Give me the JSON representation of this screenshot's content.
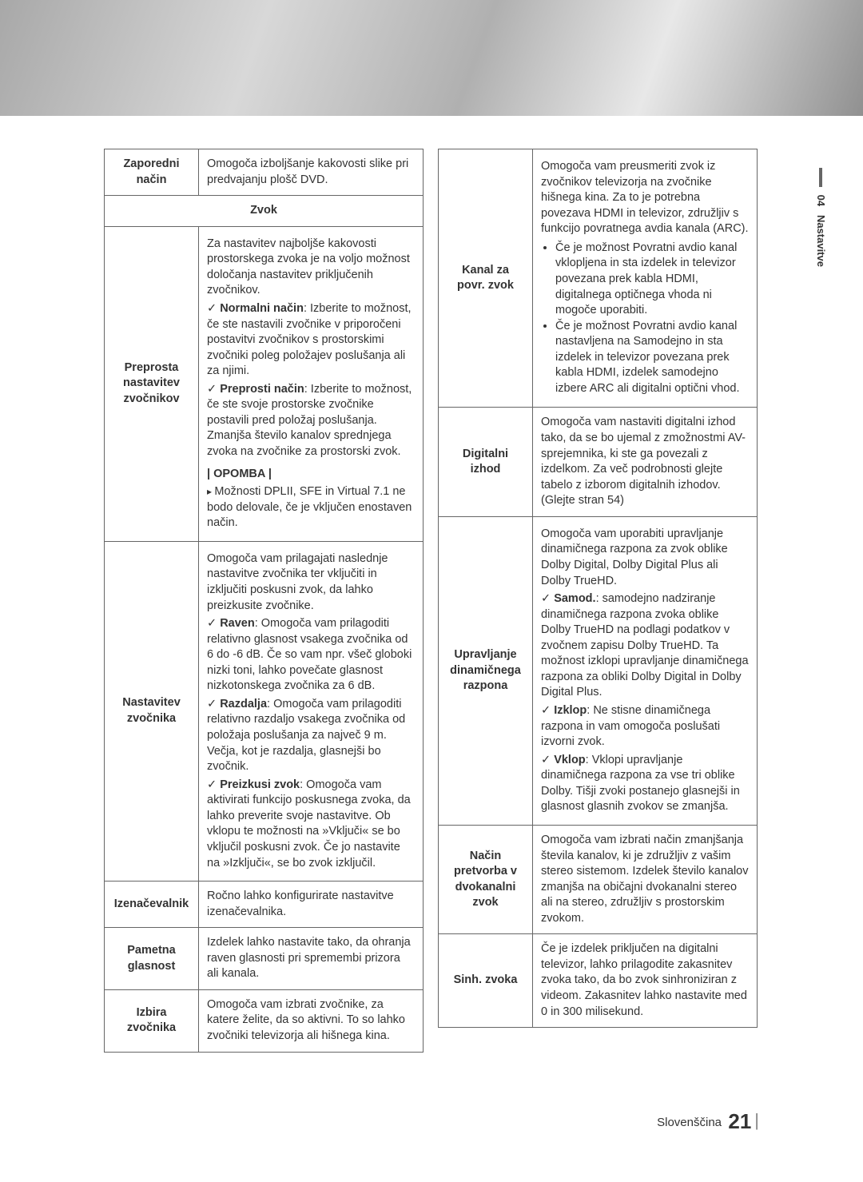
{
  "sideTab": {
    "num": "04",
    "label": "Nastavitve"
  },
  "footer": {
    "lang": "Slovenščina",
    "page": "21"
  },
  "sectionHeader": "Zvok",
  "left": {
    "r1": {
      "label": "Zaporedni način",
      "desc": "Omogoča izboljšanje kakovosti slike pri predvajanju plošč DVD."
    },
    "r2": {
      "label": "Preprosta nastavitev zvočnikov",
      "intro": "Za nastavitev najboljše kakovosti prostorskega zvoka je na voljo možnost določanja nastavitev priključenih zvočnikov.",
      "opt1_label": "Normalni način",
      "opt1_rest": ": Izberite to možnost, če ste nastavili zvočnike v priporočeni postavitvi zvočnikov s prostorskimi zvočniki poleg položajev poslušanja ali za njimi.",
      "opt2_label": "Preprosti način",
      "opt2_rest": ": Izberite to možnost, če ste svoje prostorske zvočnike postavili pred položaj poslušanja. Zmanjša število kanalov sprednjega zvoka na zvočnike za prostorski zvok.",
      "note_heading": "| OPOMBA |",
      "note_item": "Možnosti DPLII, SFE in Virtual 7.1 ne bodo delovale, če je vključen enostaven način."
    },
    "r3": {
      "label": "Nastavitev zvočnika",
      "intro": "Omogoča vam prilagajati naslednje nastavitve zvočnika ter vključiti in izključiti poskusni zvok, da lahko preizkusite zvočnike.",
      "opt1_label": "Raven",
      "opt1_rest": ": Omogoča vam prilagoditi relativno glasnost vsakega zvočnika od 6 do -6 dB. Če so vam npr. všeč globoki nizki toni, lahko povečate glasnost nizkotonskega zvočnika za 6 dB.",
      "opt2_label": "Razdalja",
      "opt2_rest": ": Omogoča vam prilagoditi relativno razdaljo vsakega zvočnika od položaja poslušanja za največ 9 m. Večja, kot je razdalja, glasnejši bo zvočnik.",
      "opt3_label": "Preizkusi zvok",
      "opt3_rest": ": Omogoča vam aktivirati funkcijo poskusnega zvoka, da lahko preverite svoje nastavitve. Ob vklopu te možnosti na »Vključi« se bo vključil poskusni zvok. Če jo nastavite na »Izključi«, se bo zvok izključil."
    },
    "r4": {
      "label": "Izenačevalnik",
      "desc": "Ročno lahko konfigurirate nastavitve izenačevalnika."
    },
    "r5": {
      "label": "Pametna glasnost",
      "desc": "Izdelek lahko nastavite tako, da ohranja raven glasnosti pri spremembi prizora ali kanala."
    },
    "r6": {
      "label": "Izbira zvočnika",
      "desc": "Omogoča vam izbrati zvočnike, za katere želite, da so aktivni. To so lahko zvočniki televizorja ali hišnega kina."
    }
  },
  "right": {
    "r1": {
      "label": "Kanal za povr. zvok",
      "intro": "Omogoča vam preusmeriti zvok iz zvočnikov televizorja na zvočnike hišnega kina. Za to je potrebna povezava HDMI in televizor, združljiv s funkcijo povratnega avdia kanala (ARC).",
      "b1": "Če je možnost Povratni avdio kanal vklopljena in sta izdelek in televizor povezana prek kabla HDMI, digitalnega optičnega vhoda ni mogoče uporabiti.",
      "b2": "Če je možnost Povratni avdio kanal nastavljena na Samodejno in sta izdelek in televizor povezana prek kabla HDMI, izdelek samodejno izbere ARC ali digitalni optični vhod."
    },
    "r2": {
      "label": "Digitalni izhod",
      "desc": "Omogoča vam nastaviti digitalni izhod tako, da se bo ujemal z zmožnostmi AV-sprejemnika, ki ste ga povezali z izdelkom. Za več podrobnosti glejte tabelo z izborom digitalnih izhodov. (Glejte stran 54)"
    },
    "r3": {
      "label": "Upravljanje dinamičnega razpona",
      "intro": "Omogoča vam uporabiti upravljanje dinamičnega razpona za zvok oblike Dolby Digital, Dolby Digital Plus ali Dolby TrueHD.",
      "opt1_label": "Samod.",
      "opt1_rest": ": samodejno nadziranje dinamičnega razpona zvoka oblike Dolby TrueHD na podlagi podatkov v zvočnem zapisu Dolby TrueHD. Ta možnost izklopi upravljanje dinamičnega razpona za obliki Dolby Digital in Dolby Digital Plus.",
      "opt2_label": "Izklop",
      "opt2_rest": ": Ne stisne dinamičnega razpona in vam omogoča poslušati izvorni zvok.",
      "opt3_label": "Vklop",
      "opt3_rest": ": Vklopi upravljanje dinamičnega razpona za vse tri oblike Dolby. Tišji zvoki postanejo glasnejši in glasnost glasnih zvokov se zmanjša."
    },
    "r4": {
      "label": "Način pretvorba v dvokanalni zvok",
      "desc": "Omogoča vam izbrati način zmanjšanja števila kanalov, ki je združljiv z vašim stereo sistemom. Izdelek število kanalov zmanjša na običajni dvokanalni stereo ali na stereo, združljiv s prostorskim zvokom."
    },
    "r5": {
      "label": "Sinh. zvoka",
      "desc": "Če je izdelek priključen na digitalni televizor, lahko prilagodite zakasnitev zvoka tako, da bo zvok sinhroniziran z videom. Zakasnitev lahko nastavite med 0 in 300 milisekund."
    }
  }
}
